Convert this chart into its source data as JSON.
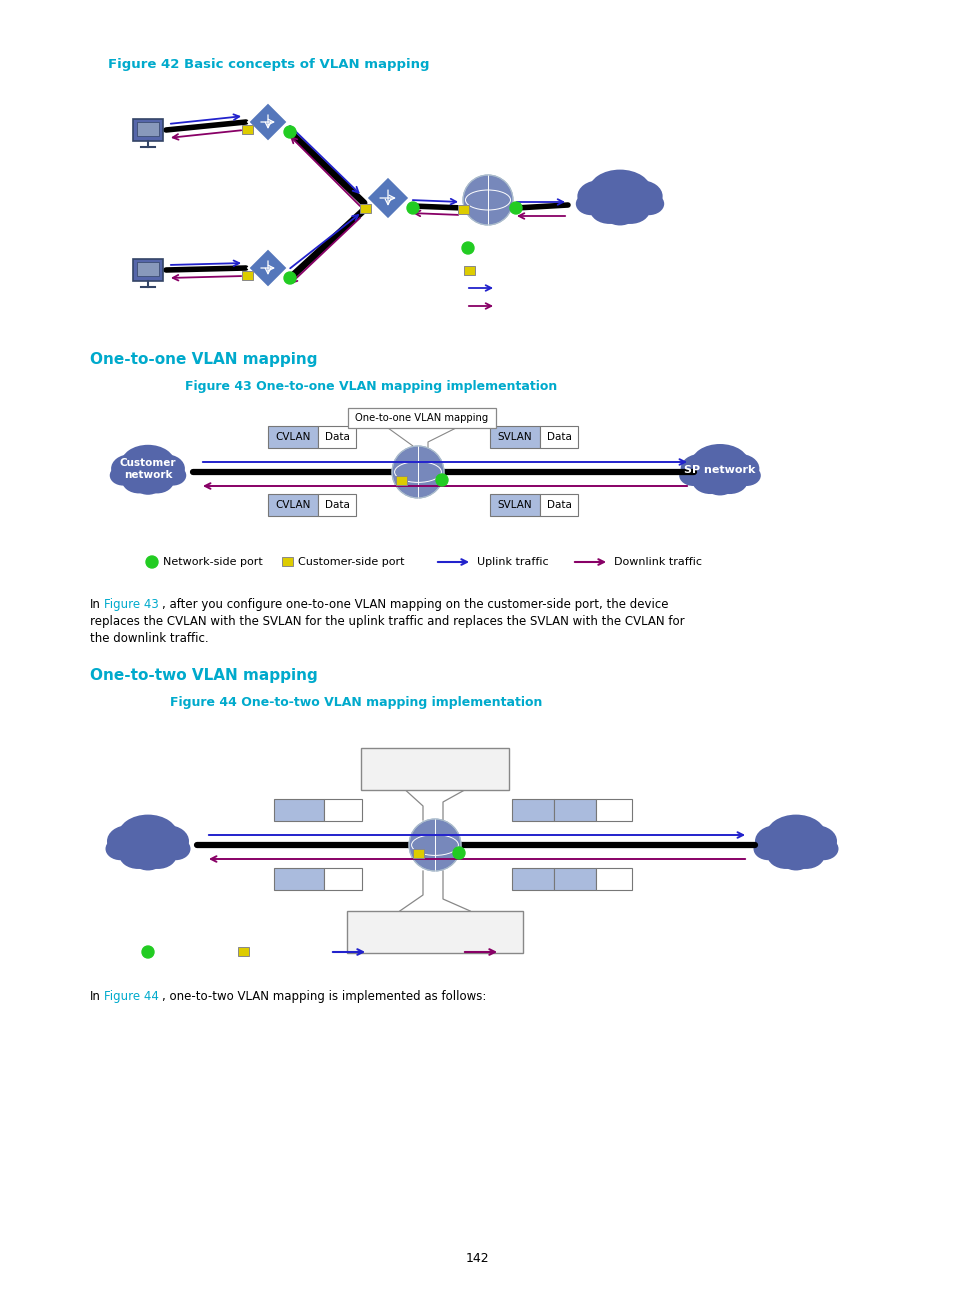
{
  "bg_color": "#ffffff",
  "fig42_title": "Figure 42 Basic concepts of VLAN mapping",
  "fig43_title": "Figure 43 One-to-one VLAN mapping implementation",
  "fig44_title": "Figure 44 One-to-two VLAN mapping implementation",
  "section1_title": "One-to-one VLAN mapping",
  "section2_title": "One-to-two VLAN mapping",
  "cyan": "#00AACC",
  "blue": "#2222CC",
  "purple": "#880066",
  "green": "#22CC22",
  "yellow": "#DDCC00",
  "node_blue": "#5566AA",
  "light_blue": "#AABBDD",
  "box_blue": "#99AACC",
  "page": "142"
}
